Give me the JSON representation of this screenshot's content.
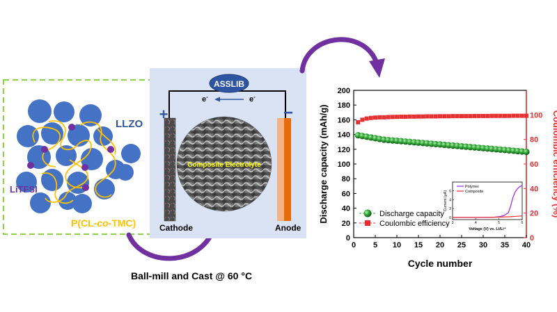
{
  "left_panel": {
    "llzo_label": "LLZO",
    "litfsi_label": "LiTFSI",
    "polymer_label_prefix": "P(CL-",
    "polymer_label_italic": "co",
    "polymer_label_suffix": "-TMC)"
  },
  "process": {
    "caption": "Ball-mill and Cast @ 60 °C"
  },
  "cell": {
    "title": "ASSLIB",
    "electron_left": "e",
    "electron_right": "e",
    "electron_superscript": "-",
    "plus_sign": "+",
    "minus_sign": "−",
    "cathode_label": "Cathode",
    "anode_label": "Anode",
    "electrolyte_label": "Composite Electrolyte"
  },
  "colors": {
    "llzo": "#4472c4",
    "litfsi": "#7030a0",
    "polymer": "#ffc000",
    "dashed_border": "#92d050",
    "cell_bg": "#dae3f3",
    "cathode": "#595959",
    "anode_outer": "#f4b183",
    "anode_inner": "#e46c0a",
    "capacity": "#2ca02c",
    "efficiency": "#e83030",
    "polymer_curve": "#a020f0",
    "composite_curve": "#e83030",
    "arrow_purple": "#7030a0"
  },
  "chart_data": [
    {
      "type": "scatter",
      "xlabel": "Cycle number",
      "ylabel": "Discharge capacity (mAh/g)",
      "y2label": "Coulombic efficiency (%)",
      "xlim": [
        0,
        40
      ],
      "ylim": [
        0,
        200
      ],
      "y2lim": [
        0,
        120
      ],
      "xticks": [
        0,
        5,
        10,
        15,
        20,
        25,
        30,
        35,
        40
      ],
      "yticks": [
        0,
        20,
        40,
        60,
        80,
        100,
        120,
        140,
        160,
        180,
        200
      ],
      "y2ticks": [
        0,
        20,
        40,
        60,
        80,
        100
      ],
      "legend_position": "bottom-left",
      "series": [
        {
          "name": "Discharge capacity",
          "axis": "left",
          "x": [
            1,
            2,
            3,
            4,
            5,
            6,
            7,
            8,
            9,
            10,
            11,
            12,
            13,
            14,
            15,
            16,
            17,
            18,
            19,
            20,
            21,
            22,
            23,
            24,
            25,
            26,
            27,
            28,
            29,
            30,
            31,
            32,
            33,
            34,
            35,
            36,
            37,
            38,
            39,
            40
          ],
          "values": [
            139,
            138,
            137,
            136,
            135,
            134,
            133,
            132.5,
            132,
            131.5,
            131,
            130.5,
            130,
            129.5,
            129,
            128.5,
            128,
            127.5,
            127,
            126.5,
            126,
            125.5,
            125,
            124.5,
            124,
            123.5,
            123,
            122.5,
            122,
            121.5,
            121,
            120.5,
            120,
            119.5,
            119,
            118.5,
            118,
            117.5,
            117,
            116.5
          ]
        },
        {
          "name": "Coulombic efficiency",
          "axis": "right",
          "x": [
            1,
            2,
            3,
            4,
            5,
            6,
            7,
            8,
            9,
            10,
            11,
            12,
            13,
            14,
            15,
            16,
            17,
            18,
            19,
            20,
            21,
            22,
            23,
            24,
            25,
            26,
            27,
            28,
            29,
            30,
            31,
            32,
            33,
            34,
            35,
            36,
            37,
            38,
            39,
            40
          ],
          "values": [
            94,
            96,
            97,
            97.5,
            97.8,
            98,
            98,
            98.2,
            98.3,
            98.4,
            98.5,
            98.5,
            98.6,
            98.6,
            98.7,
            98.7,
            98.8,
            98.8,
            98.8,
            98.9,
            98.9,
            98.9,
            99,
            99,
            99,
            99,
            99,
            99.1,
            99.1,
            99.1,
            99.1,
            99.2,
            99.2,
            99.2,
            99.2,
            99.2,
            99.3,
            99.3,
            99.3,
            99.3
          ]
        }
      ]
    },
    {
      "type": "line",
      "xlabel": "Voltage (V) vs. Li/Li⁺",
      "ylabel": "Current (μA)",
      "xlim": [
        3,
        6
      ],
      "ylim": [
        -0.5,
        8
      ],
      "xticks": [
        3,
        4,
        5,
        6
      ],
      "yticks": [
        0,
        2,
        4,
        6
      ],
      "legend_position": "top-left",
      "series": [
        {
          "name": "Polymer",
          "x": [
            3,
            3.5,
            4,
            4.5,
            4.8,
            5.0,
            5.2,
            5.4,
            5.5,
            5.6,
            5.7,
            5.8,
            5.9,
            6.0
          ],
          "values": [
            0,
            0,
            0,
            0.02,
            0.05,
            0.15,
            0.4,
            1.0,
            2.5,
            4.5,
            5.8,
            6.5,
            7.0,
            7.2
          ]
        },
        {
          "name": "Composite",
          "x": [
            3,
            3.5,
            4,
            4.5,
            5,
            5.5,
            5.8,
            6.0
          ],
          "values": [
            0,
            0,
            0,
            0,
            0.05,
            0.15,
            0.25,
            0.35
          ]
        }
      ]
    }
  ]
}
